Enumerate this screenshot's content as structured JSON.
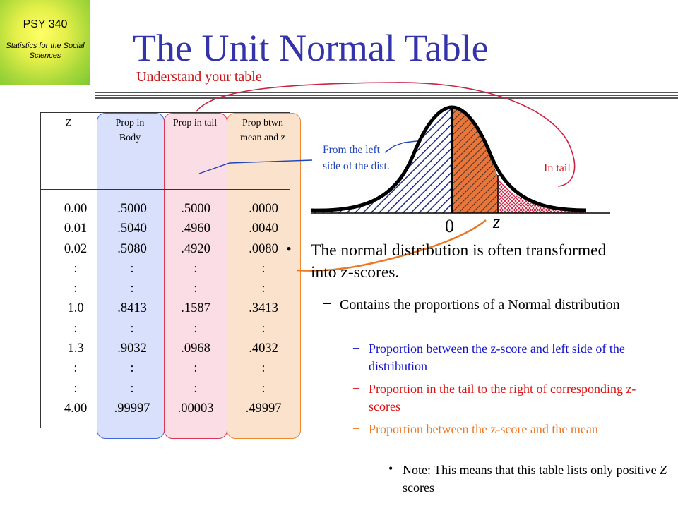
{
  "badge": {
    "course": "PSY 340",
    "subtitle": "Statistics for the Social Sciences"
  },
  "title": "The Unit Normal Table",
  "subtitle": "Understand your table",
  "table": {
    "headers": [
      "Z",
      "Prop in Body",
      "Prop in tail",
      "Prop btwn mean and z"
    ],
    "z": [
      "0.00",
      "0.01",
      "0.02",
      ":",
      ":",
      "1.0",
      ":",
      "1.3",
      ":",
      ":",
      "4.00"
    ],
    "body": [
      ".5000",
      ".5040",
      ".5080",
      ":",
      ":",
      ".8413",
      ":",
      ".9032",
      ":",
      ":",
      ".99997"
    ],
    "tail": [
      ".5000",
      ".4960",
      ".4920",
      ":",
      ":",
      ".1587",
      ":",
      ".0968",
      ":",
      ":",
      ".00003"
    ],
    "btwn": [
      ".0000",
      ".0040",
      ".0080",
      ":",
      ":",
      ".3413",
      ":",
      ".4032",
      ":",
      ":",
      ".49997"
    ]
  },
  "graph": {
    "left_label": "From the left side of the dist.",
    "tail_label": "In tail",
    "zero": "0",
    "z": "z",
    "colors": {
      "body": "#1a2a88",
      "between": "#e8763a",
      "tail": "#cc2244",
      "curve": "#000000"
    }
  },
  "bullets": {
    "main": "The normal distribution is often transformed into z-scores.",
    "sub": "Contains the proportions of a Normal distribution",
    "items": [
      {
        "text": "Proportion between the z-score and left side of the distribution",
        "color": "#1111cc"
      },
      {
        "text": "Proportion in the tail to the right of corresponding z-scores",
        "color": "#dd1111"
      },
      {
        "text": "Proportion between the z-score and the mean",
        "color": "#ee7722"
      }
    ],
    "note_pre": "Note: This means that this table lists only positive ",
    "note_z": "Z",
    "note_post": " scores"
  }
}
